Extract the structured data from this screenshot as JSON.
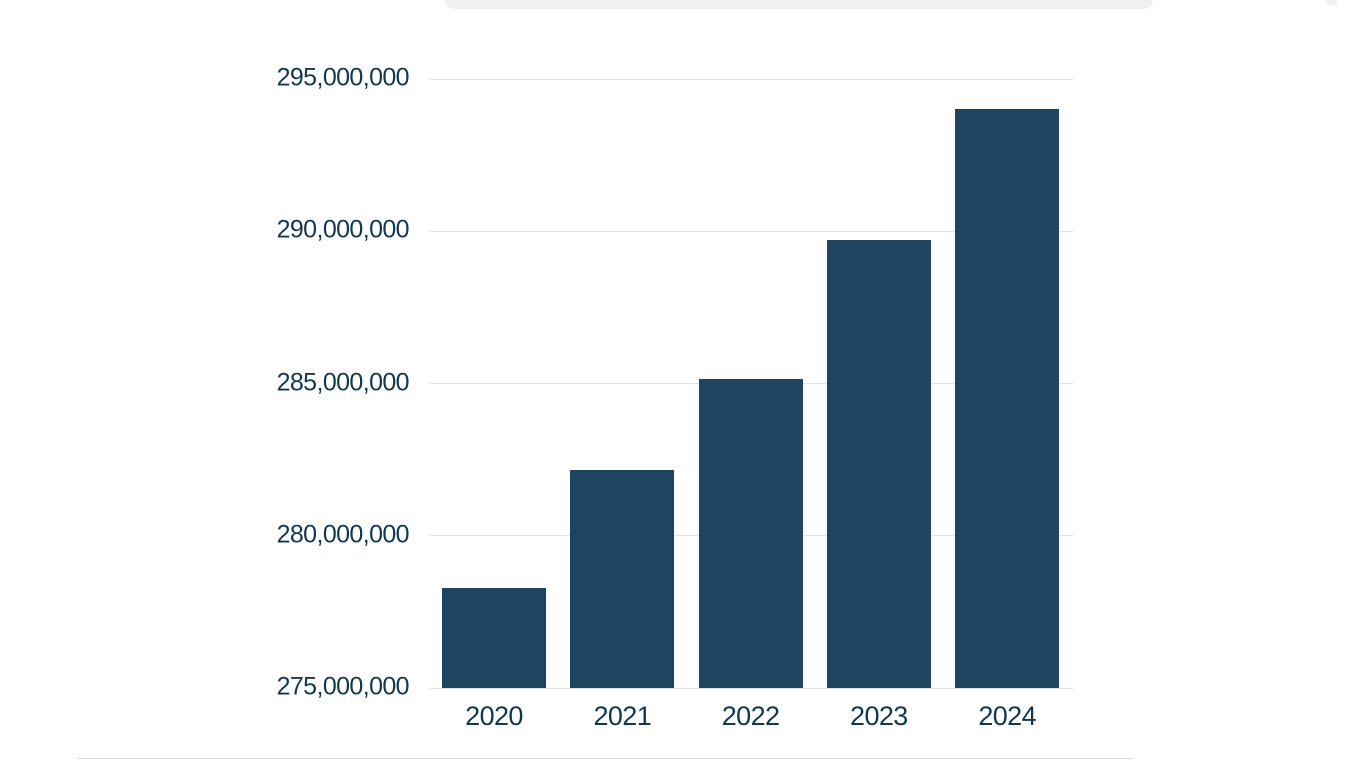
{
  "page": {
    "background": "#ffffff",
    "top_panel_color": "#f0f0f0",
    "bottom_divider_color": "#d9d9d9"
  },
  "chart_data": {
    "type": "bar",
    "categories": [
      "2020",
      "2021",
      "2022",
      "2023",
      "2024"
    ],
    "values": [
      278300000,
      282150000,
      285150000,
      289700000,
      294000000
    ],
    "title": "",
    "xlabel": "",
    "ylabel": "",
    "ylim": [
      275000000,
      295000000
    ],
    "ytick_values": [
      275000000,
      280000000,
      285000000,
      290000000,
      295000000
    ],
    "ytick_labels": [
      "275,000,000",
      "280,000,000",
      "285,000,000",
      "290,000,000",
      "295,000,000"
    ],
    "grid": "horizontal",
    "legend": "none",
    "bar_color": "#1e4560",
    "label_color": "#12384f",
    "gridline_color": "#e1e1e1"
  }
}
